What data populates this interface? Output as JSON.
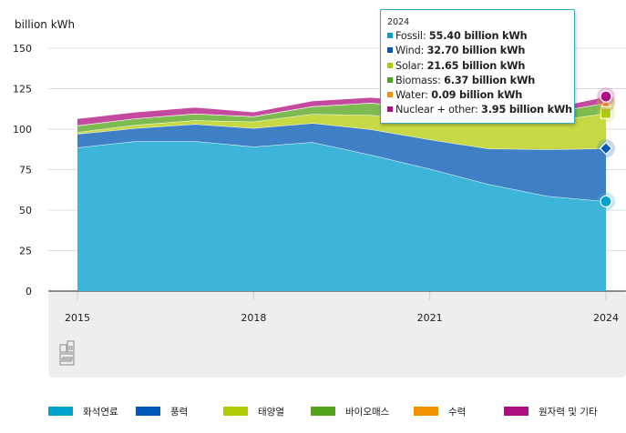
{
  "chart_data": {
    "type": "area",
    "stacked": true,
    "title": "",
    "ylabel": "billion kWh",
    "xlabel": "",
    "ylim": [
      0,
      150
    ],
    "yticks": [
      0,
      25,
      50,
      75,
      100,
      125,
      150
    ],
    "x": [
      2015,
      2016,
      2017,
      2018,
      2019,
      2020,
      2021,
      2022,
      2023,
      2024
    ],
    "xticks": [
      "2015",
      "2018",
      "2021",
      "2024"
    ],
    "grid": true,
    "legend_position": "bottom",
    "series": [
      {
        "key": "fossil",
        "name": "화석연료",
        "tooltip_name": "Fossil",
        "color": "#3db5d8",
        "legend_color": "#00a1cd",
        "values": [
          88.6,
          92.6,
          92.6,
          89.2,
          92.0,
          84.1,
          75.5,
          66.0,
          58.7,
          55.4
        ]
      },
      {
        "key": "wind",
        "name": "풍력",
        "tooltip_name": "Wind",
        "color": "#3f7fc6",
        "legend_color": "#0058b8",
        "values": [
          8.4,
          8.0,
          10.5,
          11.4,
          11.7,
          15.8,
          18.1,
          22.0,
          28.8,
          32.7
        ]
      },
      {
        "key": "solar",
        "name": "태양열",
        "tooltip_name": "Solar",
        "color": "#c6d944",
        "legend_color": "#afcb05",
        "values": [
          1.1,
          2.1,
          2.4,
          4.0,
          5.6,
          8.8,
          11.3,
          17.0,
          17.1,
          21.65
        ]
      },
      {
        "key": "biomass",
        "name": "바이오매스",
        "tooltip_name": "Biomass",
        "color": "#7dba52",
        "legend_color": "#53a31d",
        "values": [
          4.1,
          3.9,
          4.0,
          3.2,
          4.7,
          7.5,
          7.8,
          7.5,
          5.1,
          6.37
        ]
      },
      {
        "key": "water",
        "name": "수력",
        "tooltip_name": "Water",
        "color": "#f0a030",
        "legend_color": "#f39200",
        "values": [
          0.1,
          0.1,
          0.1,
          0.1,
          0.1,
          0.1,
          0.1,
          0.1,
          0.1,
          0.09
        ]
      },
      {
        "key": "nuclear",
        "name": "원자력 및 기타",
        "tooltip_name": "Nuclear + other",
        "color": "#c44aa0",
        "legend_color": "#af0e80",
        "values": [
          4.3,
          4.0,
          4.0,
          2.8,
          3.4,
          3.4,
          3.6,
          3.6,
          2.8,
          3.95
        ]
      }
    ],
    "tooltip": {
      "year": "2024",
      "rows": [
        {
          "label": "Fossil:",
          "value": "55.40 billion kWh",
          "color": "#00a1cd"
        },
        {
          "label": "Wind:",
          "value": "32.70 billion kWh",
          "color": "#0058b8"
        },
        {
          "label": "Solar:",
          "value": "21.65 billion kWh",
          "color": "#afcb05"
        },
        {
          "label": "Biomass:",
          "value": "6.37 billion kWh",
          "color": "#53a31d"
        },
        {
          "label": "Water:",
          "value": "0.09 billion kWh",
          "color": "#f39200"
        },
        {
          "label": "Nuclear + other:",
          "value": "3.95 billion kWh",
          "color": "#af0e80"
        }
      ]
    }
  },
  "logo": "cbs"
}
